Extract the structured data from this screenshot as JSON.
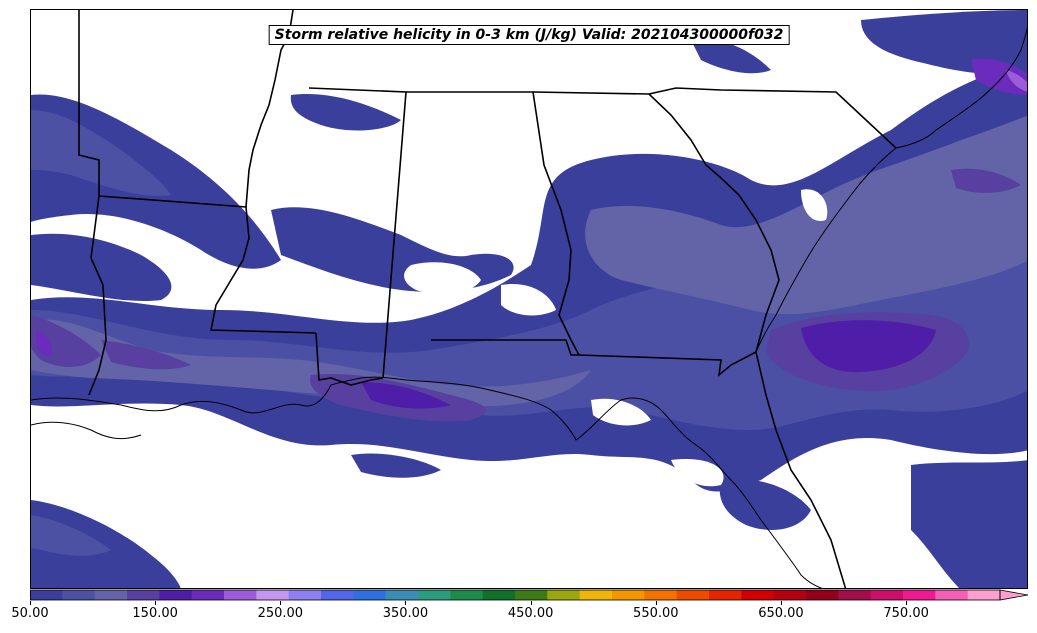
{
  "title": "Storm relative helicity in 0-3 km (J/kg) Valid: 202104300000f032",
  "colorbar": {
    "min": 50,
    "max": 825,
    "step": 25,
    "extend": "max",
    "ticks": [
      "50.00",
      "150.00",
      "250.00",
      "350.00",
      "450.00",
      "550.00",
      "650.00",
      "750.00"
    ],
    "colors": [
      "#3b3f9c",
      "#4c51a4",
      "#6364a8",
      "#5740a0",
      "#4f1ea8",
      "#6b2bbd",
      "#9d5ad9",
      "#c396ef",
      "#8f7ff0",
      "#5266ea",
      "#2f70e0",
      "#3a8db5",
      "#2d9b7e",
      "#1e8b4a",
      "#11702a",
      "#3d7b16",
      "#9ba70e",
      "#f0b50a",
      "#f59500",
      "#f57200",
      "#ef4b00",
      "#e52500",
      "#d20000",
      "#b40010",
      "#94001a",
      "#a50c4a",
      "#cc0f6b",
      "#ef1a8f",
      "#f55fb4",
      "#fb9fd0"
    ]
  }
}
